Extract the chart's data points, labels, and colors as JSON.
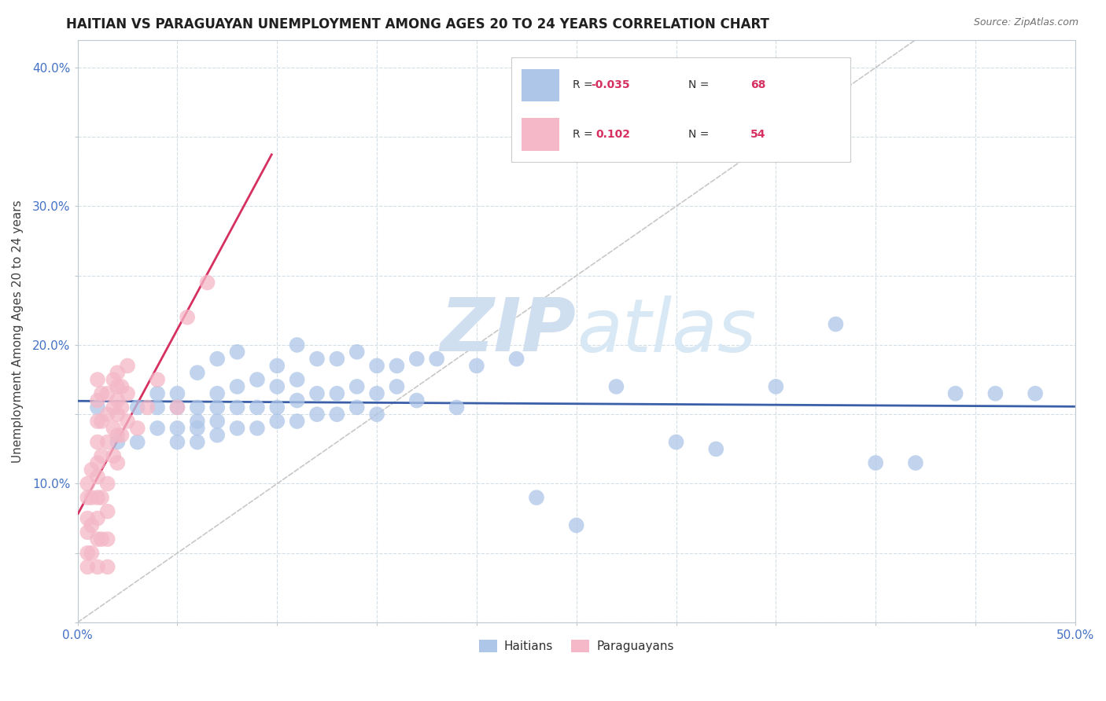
{
  "title": "HAITIAN VS PARAGUAYAN UNEMPLOYMENT AMONG AGES 20 TO 24 YEARS CORRELATION CHART",
  "source": "Source: ZipAtlas.com",
  "ylabel": "Unemployment Among Ages 20 to 24 years",
  "xlim": [
    0.0,
    0.5
  ],
  "ylim": [
    0.0,
    0.42
  ],
  "haiti_R": "-0.035",
  "haiti_N": "68",
  "paraguay_R": "0.102",
  "paraguay_N": "54",
  "haiti_color": "#aec6e8",
  "paraguay_color": "#f4b8c8",
  "trendline_haiti_color": "#3a5fa8",
  "trendline_paraguay_color": "#d63060",
  "trendline_diagonal_color": "#c8c8c8",
  "watermark_text": "ZIPatlas",
  "watermark_color": "#d0dff0",
  "haiti_x": [
    0.01,
    0.02,
    0.03,
    0.03,
    0.04,
    0.04,
    0.04,
    0.05,
    0.05,
    0.05,
    0.05,
    0.06,
    0.06,
    0.06,
    0.06,
    0.06,
    0.07,
    0.07,
    0.07,
    0.07,
    0.07,
    0.08,
    0.08,
    0.08,
    0.08,
    0.09,
    0.09,
    0.09,
    0.1,
    0.1,
    0.1,
    0.1,
    0.11,
    0.11,
    0.11,
    0.11,
    0.12,
    0.12,
    0.12,
    0.13,
    0.13,
    0.13,
    0.14,
    0.14,
    0.14,
    0.15,
    0.15,
    0.15,
    0.16,
    0.16,
    0.17,
    0.17,
    0.18,
    0.19,
    0.2,
    0.22,
    0.23,
    0.25,
    0.27,
    0.3,
    0.32,
    0.35,
    0.38,
    0.4,
    0.42,
    0.44,
    0.46,
    0.48
  ],
  "haiti_y": [
    0.155,
    0.13,
    0.13,
    0.155,
    0.14,
    0.155,
    0.165,
    0.13,
    0.14,
    0.155,
    0.165,
    0.13,
    0.14,
    0.145,
    0.155,
    0.18,
    0.135,
    0.145,
    0.155,
    0.165,
    0.19,
    0.14,
    0.155,
    0.17,
    0.195,
    0.14,
    0.155,
    0.175,
    0.145,
    0.155,
    0.17,
    0.185,
    0.145,
    0.16,
    0.175,
    0.2,
    0.15,
    0.165,
    0.19,
    0.15,
    0.165,
    0.19,
    0.155,
    0.17,
    0.195,
    0.15,
    0.165,
    0.185,
    0.17,
    0.185,
    0.16,
    0.19,
    0.19,
    0.155,
    0.185,
    0.19,
    0.09,
    0.07,
    0.17,
    0.13,
    0.125,
    0.17,
    0.215,
    0.115,
    0.115,
    0.165,
    0.165,
    0.165
  ],
  "paraguay_x": [
    0.005,
    0.005,
    0.005,
    0.005,
    0.005,
    0.005,
    0.007,
    0.007,
    0.007,
    0.007,
    0.01,
    0.01,
    0.01,
    0.01,
    0.01,
    0.01,
    0.01,
    0.01,
    0.01,
    0.01,
    0.012,
    0.012,
    0.012,
    0.012,
    0.012,
    0.015,
    0.015,
    0.015,
    0.015,
    0.015,
    0.015,
    0.015,
    0.018,
    0.018,
    0.018,
    0.018,
    0.02,
    0.02,
    0.02,
    0.02,
    0.02,
    0.02,
    0.022,
    0.022,
    0.022,
    0.025,
    0.025,
    0.025,
    0.03,
    0.035,
    0.04,
    0.05,
    0.055,
    0.065
  ],
  "paraguay_y": [
    0.04,
    0.05,
    0.065,
    0.075,
    0.09,
    0.1,
    0.05,
    0.07,
    0.09,
    0.11,
    0.04,
    0.06,
    0.075,
    0.09,
    0.105,
    0.115,
    0.13,
    0.145,
    0.16,
    0.175,
    0.06,
    0.09,
    0.12,
    0.145,
    0.165,
    0.04,
    0.06,
    0.08,
    0.1,
    0.13,
    0.15,
    0.165,
    0.12,
    0.14,
    0.155,
    0.175,
    0.115,
    0.135,
    0.15,
    0.16,
    0.17,
    0.18,
    0.135,
    0.155,
    0.17,
    0.145,
    0.165,
    0.185,
    0.14,
    0.155,
    0.175,
    0.155,
    0.22,
    0.245
  ]
}
